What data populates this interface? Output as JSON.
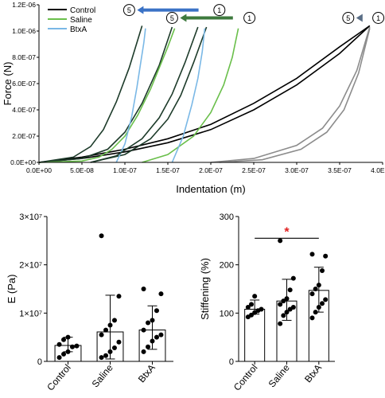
{
  "chart_data": [
    {
      "type": "line",
      "xlabel": "Indentation (m)",
      "ylabel": "Force (N)",
      "xlim": [
        0,
        4e-07
      ],
      "ylim": [
        0,
        1.2e-06
      ],
      "x_ticks": [
        "0.0E+00",
        "5.0E-08",
        "1.0E-07",
        "1.5E-07",
        "2.0E-07",
        "2.5E-07",
        "3.0E-07",
        "3.5E-07",
        "4.0E-07"
      ],
      "y_ticks": [
        "0.0E+00",
        "2.0E-07",
        "4.0E-07",
        "6.0E-07",
        "8.0E-07",
        "1.0E-06",
        "1.2E-06"
      ],
      "legend": [
        "Control",
        "Saline",
        "BtxA"
      ],
      "legend_position": "top-left",
      "series": [
        {
          "name": "Control",
          "color": "#000000",
          "x": [
            0,
            5e-08,
            1e-07,
            1.5e-07,
            2e-07,
            2.5e-07,
            3e-07,
            3.5e-07,
            3.85e-07
          ],
          "y": [
            0,
            4e-08,
            1e-07,
            1.8e-07,
            2.9e-07,
            4.5e-07,
            6.4e-07,
            8.8e-07,
            1.04e-06
          ]
        },
        {
          "name": "Control",
          "color": "#000000",
          "x": [
            0,
            5e-08,
            1e-07,
            1.5e-07,
            2e-07,
            2.5e-07,
            3e-07,
            3.5e-07,
            3.85e-07
          ],
          "y": [
            0,
            3e-08,
            8e-08,
            1.5e-07,
            2.5e-07,
            4e-07,
            5.9e-07,
            8.3e-07,
            1.04e-06
          ]
        },
        {
          "name": "",
          "color": "#8c8c8c",
          "x": [
            2e-07,
            2.5e-07,
            3e-07,
            3.3e-07,
            3.5e-07,
            3.7e-07,
            3.85e-07
          ],
          "y": [
            0,
            3e-08,
            1.3e-07,
            2.6e-07,
            4.3e-07,
            7e-07,
            1.03e-06
          ]
        },
        {
          "name": "",
          "color": "#8c8c8c",
          "x": [
            2.1e-07,
            2.6e-07,
            3.05e-07,
            3.35e-07,
            3.55e-07,
            3.72e-07,
            3.85e-07
          ],
          "y": [
            0,
            2e-08,
            1e-07,
            2.3e-07,
            4e-07,
            6.8e-07,
            1.02e-06
          ]
        },
        {
          "name": "Saline",
          "color": "#1d3b2a",
          "x": [
            0,
            5e-08,
            8e-08,
            1e-07,
            1.2e-07,
            1.4e-07,
            1.55e-07
          ],
          "y": [
            0,
            3e-08,
            1e-07,
            2.3e-07,
            4.5e-07,
            7.4e-07,
            1.03e-06
          ]
        },
        {
          "name": "Saline",
          "color": "#6abf4b",
          "x": [
            0,
            5e-08,
            7e-08,
            8.5e-08,
            1e-07,
            1.15e-07,
            1.3e-07,
            1.4e-07,
            1.5e-07,
            1.58e-07
          ],
          "y": [
            0,
            1e-08,
            4e-08,
            1e-07,
            2e-07,
            3.6e-07,
            5.6e-07,
            7.2e-07,
            8.8e-07,
            1.02e-06
          ]
        },
        {
          "name": "Saline",
          "color": "#1d3b2a",
          "x": [
            6e-08,
            1e-07,
            1.3e-07,
            1.5e-07,
            1.65e-07,
            1.8e-07,
            1.95e-07
          ],
          "y": [
            0,
            6e-08,
            1.8e-07,
            3.3e-07,
            5.1e-07,
            7.6e-07,
            1.03e-06
          ]
        },
        {
          "name": "Saline",
          "color": "#6abf4b",
          "x": [
            1.2e-07,
            1.5e-07,
            1.8e-07,
            2e-07,
            2.15e-07,
            2.25e-07,
            2.32e-07
          ],
          "y": [
            0,
            6e-08,
            2e-07,
            3.8e-07,
            5.9e-07,
            8e-07,
            1.02e-06
          ]
        },
        {
          "name": "BtxA",
          "color": "#1d3b2a",
          "x": [
            0,
            4e-08,
            6e-08,
            7.5e-08,
            9e-08,
            1.05e-07,
            1.2e-07
          ],
          "y": [
            0,
            4e-08,
            1.2e-07,
            2.5e-07,
            4.6e-07,
            7.2e-07,
            1.04e-06
          ]
        },
        {
          "name": "BtxA",
          "color": "#7ab8e6",
          "x": [
            9e-08,
            1e-07,
            1.08e-07,
            1.14e-07,
            1.18e-07,
            1.22e-07,
            1.24e-07
          ],
          "y": [
            0,
            1.4e-07,
            3.5e-07,
            5.7e-07,
            7.4e-07,
            9.1e-07,
            1.02e-06
          ]
        },
        {
          "name": "BtxA",
          "color": "#1d3b2a",
          "x": [
            6e-08,
            9e-08,
            1.2e-07,
            1.4e-07,
            1.55e-07,
            1.7e-07,
            1.85e-07
          ],
          "y": [
            0,
            5e-08,
            1.8e-07,
            3.4e-07,
            5.2e-07,
            7.6e-07,
            1.03e-06
          ]
        },
        {
          "name": "BtxA",
          "color": "#7ab8e6",
          "x": [
            1.55e-07,
            1.68e-07,
            1.78e-07,
            1.85e-07,
            1.9e-07,
            1.93e-07
          ],
          "y": [
            0,
            2e-07,
            4.4e-07,
            6.4e-07,
            8.4e-07,
            1.02e-06
          ]
        }
      ],
      "annotations": [
        {
          "text": "5",
          "arrow_color": "#3a72c6",
          "x_start": 1.05e-07,
          "x_end": 1.95e-07,
          "y": 1.16e-06
        },
        {
          "text": "1",
          "x": 2.1e-07,
          "y": 1.16e-06
        },
        {
          "text": "5",
          "arrow_color": "#3e7a3e",
          "x_start": 1.55e-07,
          "x_end": 2.35e-07,
          "y": 1.1e-06
        },
        {
          "text": "1",
          "x": 2.45e-07,
          "y": 1.1e-06
        },
        {
          "text": "5",
          "arrow_color": "#5a6e86",
          "x_start": 3.6e-07,
          "x_end": 3.85e-07,
          "y": 1.1e-06
        },
        {
          "text": "1",
          "x": 3.95e-07,
          "y": 1.1e-06
        }
      ]
    },
    {
      "type": "bar",
      "categories": [
        "Control",
        "Saline",
        "BtxA"
      ],
      "values": [
        3300000.0,
        6100000.0,
        6500000.0
      ],
      "errors_upper": [
        5000000.0,
        13700000.0,
        11500000.0
      ],
      "errors_lower": [
        2000000.0,
        500000.0,
        2500000.0
      ],
      "ylabel": "E (Pa)",
      "ylim": [
        0,
        30000000.0
      ],
      "y_ticks": [
        "0",
        "1×10⁷",
        "2×10⁷",
        "3×10⁷"
      ],
      "points": [
        [
          800000.0,
          1500000.0,
          2000000.0,
          3000000.0,
          3200000.0,
          3500000.0,
          4500000.0,
          5000000.0
        ],
        [
          800000.0,
          1200000.0,
          2000000.0,
          2800000.0,
          4000000.0,
          5500000.0,
          6500000.0,
          7500000.0,
          8500000.0,
          13500000.0,
          26000000.0
        ],
        [
          2000000.0,
          3000000.0,
          4200000.0,
          5000000.0,
          5500000.0,
          6500000.0,
          8000000.0,
          8500000.0,
          10500000.0,
          14000000.0,
          15000000.0
        ]
      ]
    },
    {
      "type": "bar",
      "categories": [
        "Control",
        "Saline",
        "BtxA"
      ],
      "values": [
        108,
        125,
        147
      ],
      "errors_upper": [
        127,
        170,
        195
      ],
      "errors_lower": [
        98,
        85,
        102
      ],
      "ylabel": "Stiffening (%)",
      "ylim": [
        0,
        300
      ],
      "y_ticks": [
        "0",
        "100",
        "200",
        "300"
      ],
      "significance": {
        "text": "*",
        "from": "Control",
        "to": "BtxA",
        "color": "#e02020"
      },
      "points": [
        [
          92,
          96,
          101,
          105,
          108,
          112,
          118,
          135
        ],
        [
          78,
          95,
          102,
          108,
          112,
          118,
          125,
          130,
          148,
          172,
          250
        ],
        [
          90,
          102,
          112,
          120,
          128,
          140,
          150,
          158,
          188,
          218,
          222
        ]
      ]
    }
  ]
}
